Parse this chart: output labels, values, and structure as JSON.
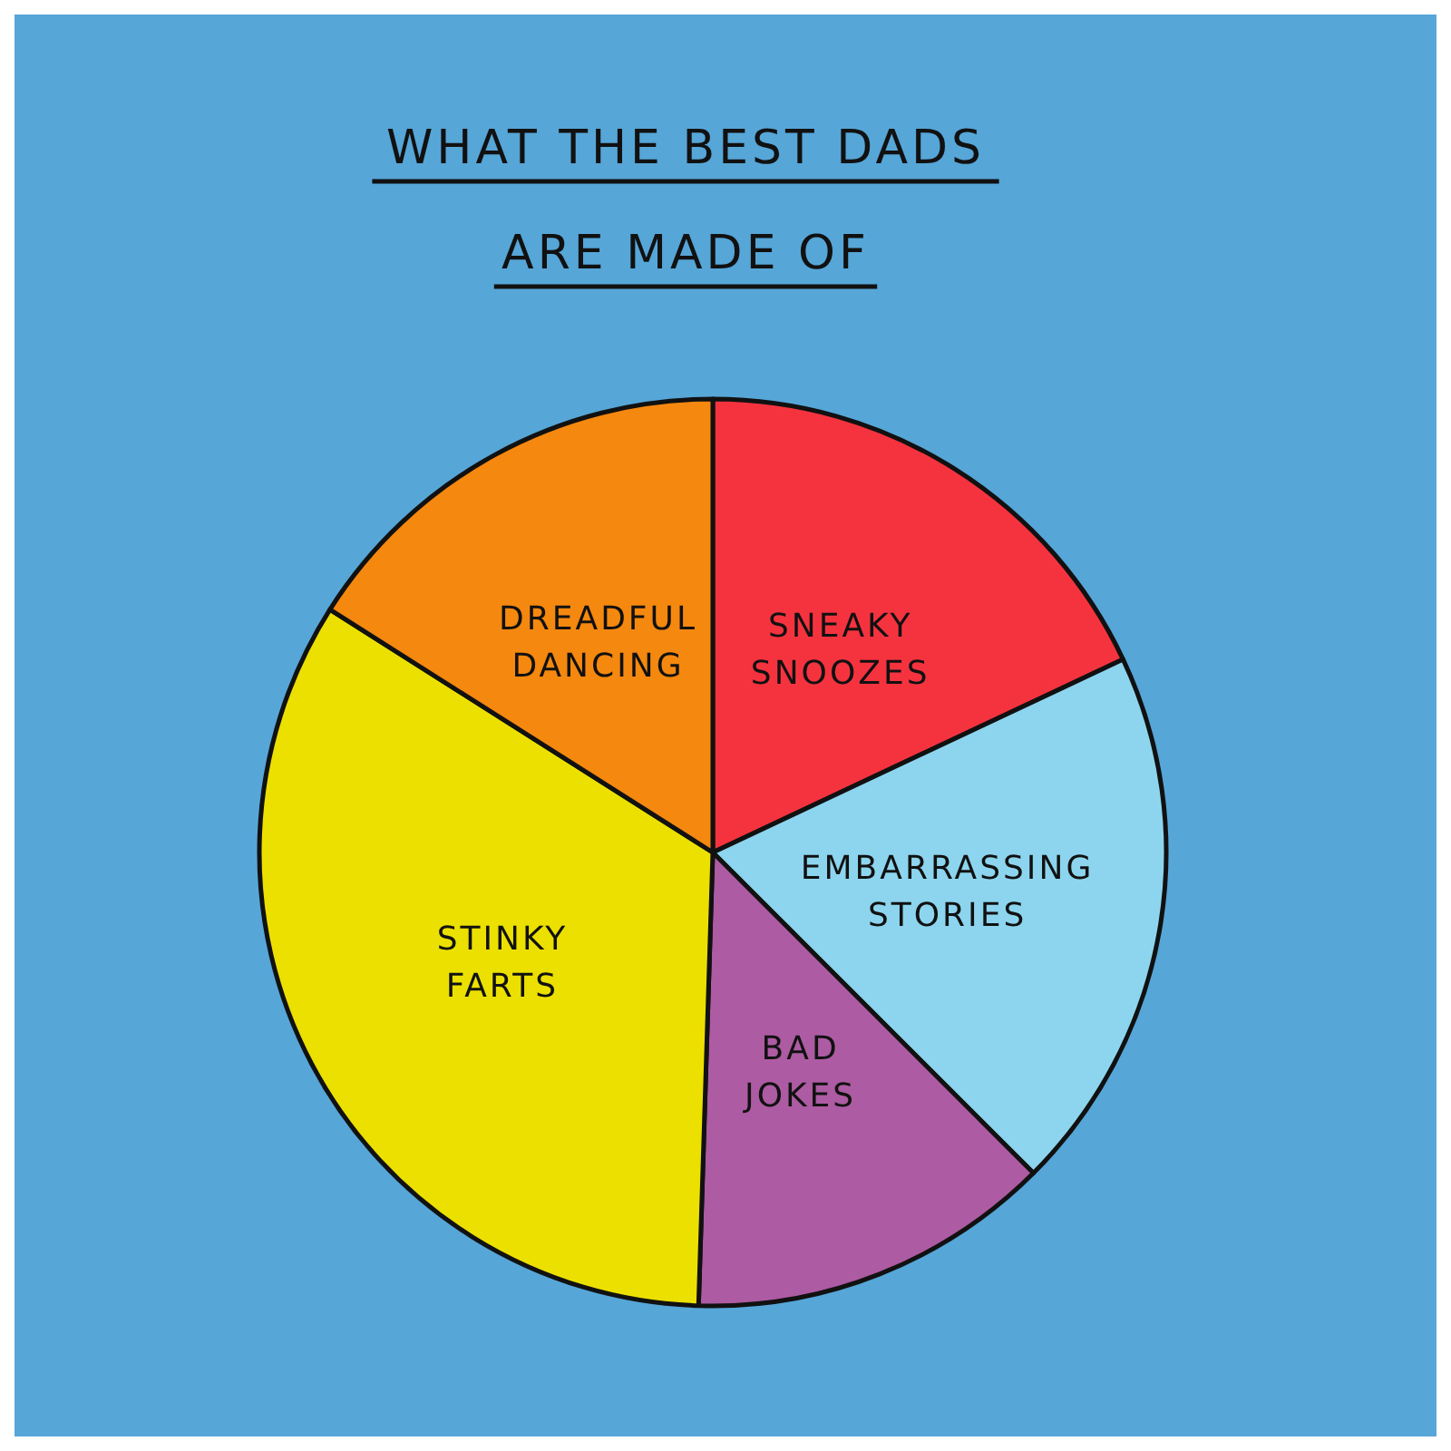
{
  "chart_data": {
    "type": "pie",
    "title": "WHAT THE BEST DADS ARE MADE OF",
    "categories": [
      "SNEAKY SNOOZES",
      "EMBARRASSING STORIES",
      "BAD JOKES",
      "STINKY FARTS",
      "DREADFUL DANCING"
    ],
    "values": [
      18,
      19.5,
      13,
      33.5,
      16
    ],
    "colors": [
      "#f5333f",
      "#8dd5ee",
      "#ad5ba3",
      "#ece000",
      "#f5880f"
    ]
  }
}
